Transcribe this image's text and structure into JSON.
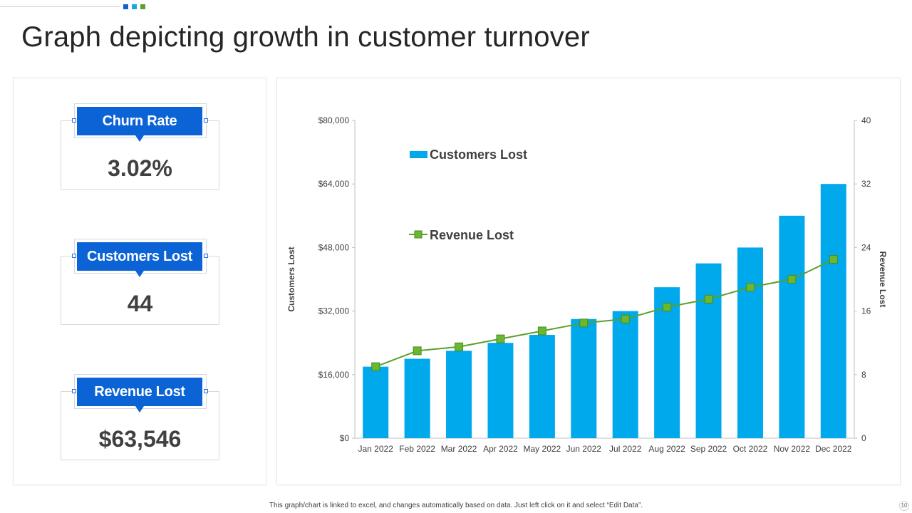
{
  "slide": {
    "title": "Graph depicting growth in customer turnover",
    "footnote": "This graph/chart is linked to excel, and changes automatically based on data. Just left click on it and select “Edit Data”.",
    "page_number": "10",
    "accent_colors": [
      "#0b63d6",
      "#17a7e3",
      "#5aa02c"
    ]
  },
  "kpis": [
    {
      "label": "Churn Rate",
      "value": "3.02%"
    },
    {
      "label": "Customers Lost",
      "value": "44"
    },
    {
      "label": "Revenue Lost",
      "value": "$63,546"
    }
  ],
  "chart_data": {
    "type": "bar",
    "categories": [
      "Jan 2022",
      "Feb 2022",
      "Mar 2022",
      "Apr 2022",
      "May 2022",
      "Jun 2022",
      "Jul 2022",
      "Aug 2022",
      "Sep 2022",
      "Oct 2022",
      "Nov 2022",
      "Dec 2022"
    ],
    "series": [
      {
        "name": "Customers Lost",
        "type": "bar",
        "axis": "left",
        "color": "#00a8ec",
        "values": [
          18000,
          20000,
          22000,
          24000,
          26000,
          30000,
          32000,
          38000,
          44000,
          48000,
          56000,
          64000
        ]
      },
      {
        "name": "Revenue Lost",
        "type": "line",
        "axis": "right",
        "color": "#5aa02c",
        "marker_fill": "#6ab82f",
        "values": [
          9,
          11,
          11.5,
          12.5,
          13.5,
          14.5,
          15,
          16.5,
          17.5,
          19,
          20,
          22.5
        ]
      }
    ],
    "y_left": {
      "label": "Customers Lost",
      "min": 0,
      "max": 80000,
      "ticks": [
        "$0",
        "$16,000",
        "$32,000",
        "$48,000",
        "$64,000",
        "$80,000"
      ]
    },
    "y_right": {
      "label": "Revenue Lost",
      "min": 0,
      "max": 40,
      "ticks": [
        "0",
        "8",
        "16",
        "24",
        "32",
        "40"
      ]
    },
    "legend": {
      "placement": "top-left",
      "entries": [
        "Customers Lost",
        "Revenue Lost"
      ]
    },
    "grid": false
  }
}
